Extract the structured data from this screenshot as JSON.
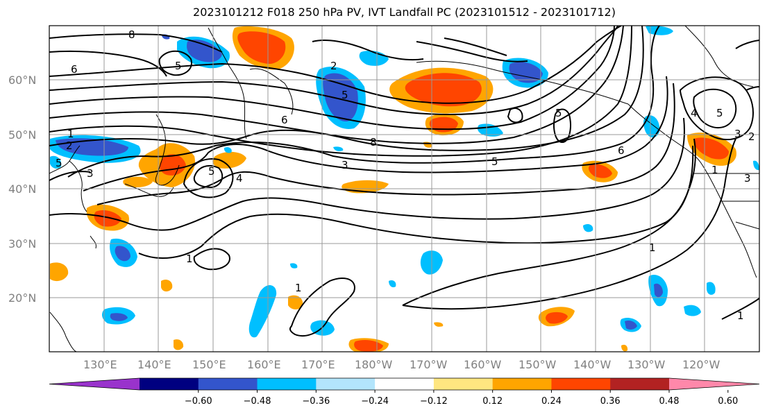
{
  "title": "2023101212 F018 250 hPa PV, IVT Landfall PC (2023101512 - 2023101712)",
  "lat_labels": [
    "60°N",
    "50°N",
    "40°N",
    "30°N",
    "20°N"
  ],
  "lon_labels": [
    "130°E",
    "140°E",
    "150°E",
    "160°E",
    "170°E",
    "180°W",
    "170°W",
    "160°W",
    "150°W",
    "140°W",
    "130°W",
    "120°W"
  ],
  "pv_contour_labels": [
    "8",
    "6",
    "5",
    "2",
    "5",
    "6",
    "8",
    "5",
    "1",
    "2",
    "5",
    "3",
    "4",
    "3",
    "5",
    "1",
    "1",
    "1",
    "1",
    "5",
    "4",
    "5",
    "3",
    "2",
    "1",
    "6",
    "3"
  ],
  "colorbar": {
    "ticks": [
      "-0.60",
      "-0.48",
      "-0.36",
      "-0.24",
      "-0.12",
      "0.12",
      "0.24",
      "0.36",
      "0.48",
      "0.60"
    ],
    "colors": [
      "#9933cc",
      "#000080",
      "#3355cc",
      "#00bfff",
      "#b3e5fc",
      "#ffffff",
      "#ffe680",
      "#ffa500",
      "#ff4500",
      "#b22222",
      "#ff88aa"
    ],
    "under_color": "#9933cc",
    "over_color": "#ff88aa"
  }
}
